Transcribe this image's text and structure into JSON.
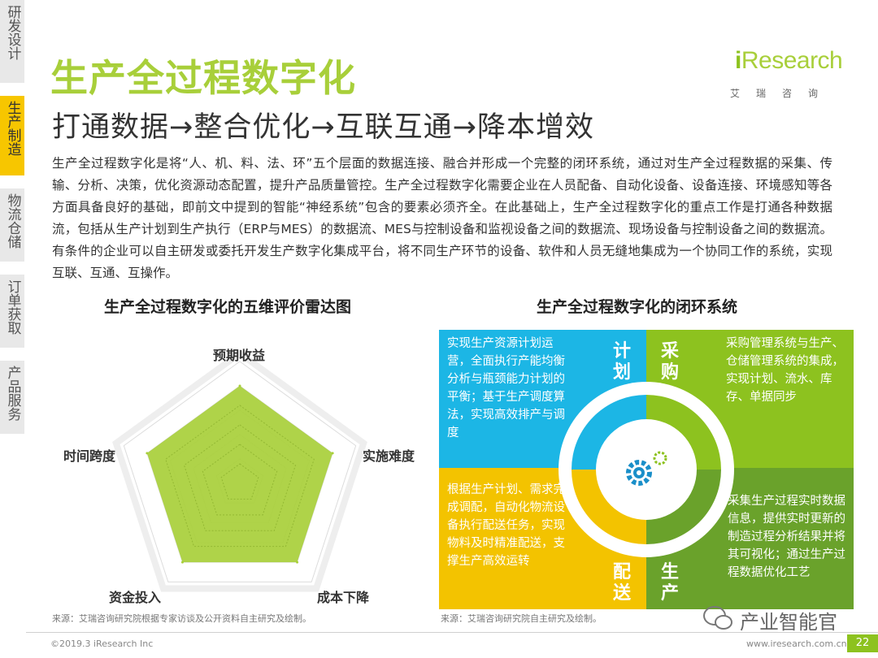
{
  "sidebar": {
    "tabs": [
      {
        "label": "研发设计"
      },
      {
        "label": "生产制造"
      },
      {
        "label": "物流仓储"
      },
      {
        "label": "订单获取"
      },
      {
        "label": "产品服务"
      }
    ],
    "active_index": 1
  },
  "header": {
    "title": "生产全过程数字化",
    "subtitle": "打通数据→整合优化→互联互通→降本增效",
    "logo_prefix": "i",
    "logo_main": "Research",
    "logo_sub": "艾瑞咨询"
  },
  "body": {
    "paragraph": "生产全过程数字化是将“人、机、料、法、环”五个层面的数据连接、融合并形成一个完整的闭环系统，通过对生产全过程数据的采集、传输、分析、决策，优化资源动态配置，提升产品质量管控。生产全过程数字化需要企业在人员配备、自动化设备、设备连接、环境感知等各方面具备良好的基础，即前文中提到的智能“神经系统”包含的要素必须齐全。在此基础上，生产全过程数字化的重点工作是打通各种数据流，包括从生产计划到生产执行（ERP与MES）的数据流、MES与控制设备和监视设备之间的数据流、现场设备与控制设备之间的数据流。有条件的企业可以自主研发或委托开发生产数字化集成平台，将不同生产环节的设备、软件和人员无缝地集成为一个协同工作的系统，实现互联、互通、互操作。"
  },
  "radar": {
    "title": "生产全过程数字化的五维评价雷达图",
    "source": "来源：艾瑞咨询研究院根据专家访谈及公开资料自主研究及绘制。"
  },
  "chart_data": {
    "type": "radar",
    "title": "生产全过程数字化的五维评价雷达图",
    "axes": [
      "预期收益",
      "实施难度",
      "成本下降",
      "资金投入",
      "时间跨度"
    ],
    "levels": 5,
    "max": 5,
    "values": [
      4,
      4,
      4,
      4,
      4
    ],
    "color": "#a8cf3a"
  },
  "loop": {
    "title": "生产全过程数字化的闭环系统",
    "source": "来源：艾瑞咨询研究院自主研究及绘制。",
    "plan": {
      "tag": "计划",
      "text": "实现生产资源计划运营，全面执行产能均衡分析与瓶颈能力计划的平衡；基于生产调度算法，实现高效排产与调度",
      "color": "#1cb6e5"
    },
    "purchase": {
      "tag": "采购",
      "text": "采购管理系统与生产、仓储管理系统的集成，实现计划、流水、库存、单据同步",
      "color": "#8dc21f"
    },
    "delivery": {
      "tag": "配送",
      "text": "根据生产计划、需求完成调配，自动化物流设备执行配送任务，实现物料及时精准配送，支撑生产高效运转",
      "color": "#f3c300"
    },
    "production": {
      "tag": "生产",
      "text": "采集生产过程实时数据信息，提供实时更新的制造过程分析结果并将其可视化；通过生产过程数据优化工艺",
      "color": "#6aa22b"
    }
  },
  "footer": {
    "copyright": "©2019.3 iResearch Inc",
    "url": "www.iresearch.com.cn",
    "page": "22",
    "watermark": "产业智能官"
  }
}
